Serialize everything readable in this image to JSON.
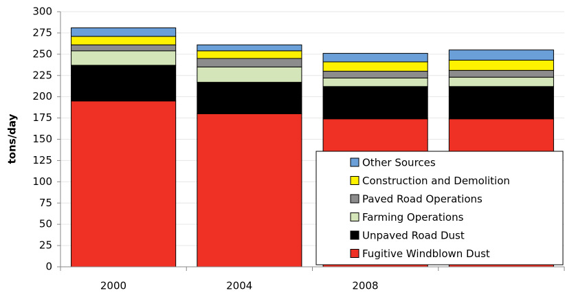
{
  "chart_data": {
    "type": "stacked-bar",
    "y_label": "tons/day",
    "categories": [
      "2000",
      "2004",
      "2008",
      null
    ],
    "series": [
      {
        "name": "Fugitive Windblown Dust",
        "color": "#ee3124",
        "values": [
          195,
          180,
          174,
          174
        ]
      },
      {
        "name": "Unpaved Road Dust",
        "color": "#000000",
        "values": [
          42,
          37,
          38,
          38
        ]
      },
      {
        "name": "Farming Operations",
        "color": "#d3e5b9",
        "values": [
          17,
          18,
          10,
          11
        ]
      },
      {
        "name": "Paved Road Operations",
        "color": "#8c8c8c",
        "values": [
          7,
          10,
          8,
          8
        ]
      },
      {
        "name": "Construction and Demolition",
        "color": "#fff200",
        "values": [
          10,
          9,
          11,
          12
        ]
      },
      {
        "name": "Other Sources",
        "color": "#6a9fd8",
        "values": [
          10,
          7,
          10,
          12
        ]
      }
    ],
    "ylim": [
      0,
      300
    ],
    "yticks": [
      0,
      25,
      50,
      75,
      100,
      125,
      150,
      175,
      200,
      225,
      250,
      275,
      300
    ],
    "grid": true
  }
}
